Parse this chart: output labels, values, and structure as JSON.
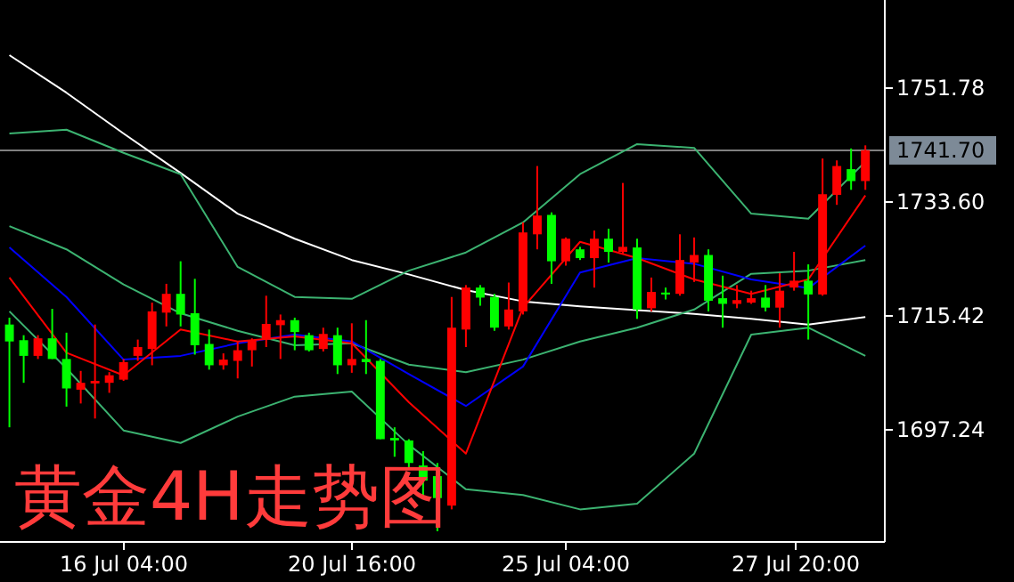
{
  "chart_data": {
    "type": "candlestick",
    "title": "黄金4H走势图",
    "categories": [
      null,
      null,
      null,
      null,
      null,
      null,
      null,
      null,
      "16 Jul 04:00",
      null,
      null,
      null,
      null,
      null,
      null,
      null,
      null,
      null,
      null,
      null,
      null,
      null,
      null,
      null,
      "20 Jul 16:00",
      null,
      null,
      null,
      null,
      null,
      null,
      null,
      null,
      null,
      null,
      null,
      null,
      null,
      null,
      "25 Jul 04:00",
      null,
      null,
      null,
      null,
      null,
      null,
      null,
      null,
      null,
      null,
      null,
      null,
      null,
      null,
      null,
      "27 Jul 20:00",
      null,
      null,
      null,
      null,
      null
    ],
    "ohlc": [
      [
        1713.9,
        1715.0,
        1697.5,
        1711.2
      ],
      [
        1711.4,
        1712.2,
        1704.6,
        1708.9
      ],
      [
        1708.9,
        1712.2,
        1708.4,
        1711.7
      ],
      [
        1711.7,
        1716.4,
        1708.4,
        1708.4
      ],
      [
        1708.4,
        1712.6,
        1700.8,
        1703.7
      ],
      [
        1703.5,
        1706.5,
        1701.3,
        1704.6
      ],
      [
        1704.5,
        1713.9,
        1698.9,
        1704.9
      ],
      [
        1704.6,
        1706.3,
        1703.0,
        1705.8
      ],
      [
        1705.1,
        1708.4,
        1704.9,
        1707.9
      ],
      [
        1708.9,
        1711.5,
        1708.1,
        1710.3
      ],
      [
        1710.0,
        1717.4,
        1707.4,
        1716.0
      ],
      [
        1715.8,
        1720.4,
        1713.6,
        1718.8
      ],
      [
        1718.8,
        1724.0,
        1713.6,
        1715.5
      ],
      [
        1715.7,
        1721.2,
        1709.1,
        1710.6
      ],
      [
        1710.8,
        1713.1,
        1706.7,
        1707.4
      ],
      [
        1707.4,
        1709.3,
        1706.7,
        1708.3
      ],
      [
        1708.1,
        1711.2,
        1705.3,
        1709.8
      ],
      [
        1709.8,
        1711.7,
        1707.2,
        1711.4
      ],
      [
        1711.5,
        1718.5,
        1710.3,
        1714.0
      ],
      [
        1713.8,
        1715.5,
        1708.4,
        1714.6
      ],
      [
        1714.6,
        1715.0,
        1709.8,
        1712.7
      ],
      [
        1712.2,
        1712.6,
        1709.6,
        1709.8
      ],
      [
        1710.0,
        1713.4,
        1709.6,
        1712.4
      ],
      [
        1712.2,
        1713.4,
        1706.0,
        1707.4
      ],
      [
        1707.4,
        1714.1,
        1706.2,
        1708.4
      ],
      [
        1708.4,
        1714.6,
        1706.0,
        1707.9
      ],
      [
        1708.1,
        1708.4,
        1695.6,
        1695.6
      ],
      [
        1695.8,
        1697.5,
        1692.8,
        1695.4
      ],
      [
        1695.4,
        1695.6,
        1690.9,
        1691.8
      ],
      [
        1691.4,
        1693.7,
        1686.2,
        1689.0
      ],
      [
        1689.7,
        1691.8,
        1680.9,
        1686.2
      ],
      [
        1685.0,
        1718.3,
        1684.4,
        1713.4
      ],
      [
        1713.1,
        1720.2,
        1710.3,
        1719.8
      ],
      [
        1719.8,
        1720.2,
        1716.9,
        1718.2
      ],
      [
        1718.3,
        1718.8,
        1712.9,
        1713.4
      ],
      [
        1713.6,
        1720.6,
        1713.1,
        1716.3
      ],
      [
        1716.0,
        1730.2,
        1715.5,
        1728.6
      ],
      [
        1728.3,
        1739.2,
        1725.9,
        1731.3
      ],
      [
        1731.4,
        1731.8,
        1720.4,
        1724.0
      ],
      [
        1724.0,
        1727.8,
        1723.3,
        1727.6
      ],
      [
        1725.9,
        1726.3,
        1724.2,
        1724.5
      ],
      [
        1724.5,
        1728.9,
        1719.8,
        1727.6
      ],
      [
        1727.6,
        1729.2,
        1723.8,
        1725.5
      ],
      [
        1725.5,
        1736.5,
        1725.2,
        1726.3
      ],
      [
        1726.2,
        1727.6,
        1714.8,
        1716.3
      ],
      [
        1716.5,
        1721.4,
        1716.0,
        1719.1
      ],
      [
        1719.0,
        1719.8,
        1717.9,
        1718.7
      ],
      [
        1718.8,
        1728.3,
        1718.5,
        1724.2
      ],
      [
        1723.8,
        1727.8,
        1720.7,
        1725.0
      ],
      [
        1725.0,
        1725.9,
        1716.0,
        1717.7
      ],
      [
        1718.1,
        1721.7,
        1713.4,
        1717.2
      ],
      [
        1717.2,
        1720.2,
        1716.5,
        1717.8
      ],
      [
        1717.4,
        1719.3,
        1717.2,
        1718.1
      ],
      [
        1718.2,
        1720.2,
        1716.0,
        1716.6
      ],
      [
        1716.6,
        1722.1,
        1713.4,
        1719.3
      ],
      [
        1719.8,
        1725.5,
        1719.3,
        1720.9
      ],
      [
        1720.9,
        1723.5,
        1711.5,
        1718.7
      ],
      [
        1718.7,
        1740.4,
        1718.5,
        1734.7
      ],
      [
        1734.6,
        1740.1,
        1733.0,
        1739.2
      ],
      [
        1738.7,
        1742.0,
        1735.4,
        1736.8
      ],
      [
        1736.8,
        1742.5,
        1735.4,
        1741.7
      ]
    ],
    "colors": [
      "#00ff00",
      "#00ff00",
      "#ff0000",
      "#00ff00",
      "#00ff00",
      "#ff0000",
      "#ff0000",
      "#ff0000",
      "#ff0000",
      "#ff0000",
      "#ff0000",
      "#ff0000",
      "#00ff00",
      "#00ff00",
      "#00ff00",
      "#ff0000",
      "#ff0000",
      "#ff0000",
      "#ff0000",
      "#ff0000",
      "#00ff00",
      "#00ff00",
      "#ff0000",
      "#00ff00",
      "#ff0000",
      "#00ff00",
      "#00ff00",
      "#00ff00",
      "#00ff00",
      "#00ff00",
      "#00ff00",
      "#ff0000",
      "#ff0000",
      "#00ff00",
      "#00ff00",
      "#ff0000",
      "#ff0000",
      "#ff0000",
      "#00ff00",
      "#ff0000",
      "#00ff00",
      "#ff0000",
      "#00ff00",
      "#ff0000",
      "#00ff00",
      "#ff0000",
      "#00ff00",
      "#ff0000",
      "#ff0000",
      "#00ff00",
      "#00ff00",
      "#ff0000",
      "#ff0000",
      "#00ff00",
      "#ff0000",
      "#ff0000",
      "#00ff00",
      "#ff0000",
      "#ff0000",
      "#00ff00",
      "#ff0000"
    ],
    "series": [
      {
        "type": "line",
        "color": "#ffffff",
        "values": [
          1756.9,
          null,
          null,
          null,
          1750.9,
          null,
          null,
          null,
          1744.4,
          null,
          null,
          null,
          1738.1,
          null,
          null,
          null,
          1731.6,
          null,
          null,
          null,
          1727.6,
          null,
          null,
          null,
          1724.2,
          null,
          null,
          null,
          1721.9,
          null,
          null,
          null,
          1719.4,
          null,
          null,
          null,
          1717.6,
          null,
          null,
          null,
          1716.8,
          null,
          null,
          null,
          1716.2,
          null,
          null,
          null,
          1715.6,
          null,
          null,
          null,
          1714.8,
          null,
          null,
          null,
          1713.9,
          null,
          null,
          null,
          1715.1
        ]
      },
      {
        "type": "line",
        "color": "#3cb371",
        "values": [
          1744.4,
          null,
          null,
          null,
          1745.0,
          null,
          null,
          null,
          1741.3,
          null,
          null,
          null,
          1737.9,
          null,
          null,
          null,
          1723.1,
          null,
          null,
          null,
          1718.3,
          null,
          null,
          null,
          1718.0,
          null,
          null,
          null,
          1722.5,
          null,
          null,
          null,
          1725.4,
          null,
          null,
          null,
          1730.2,
          null,
          null,
          null,
          1737.9,
          null,
          null,
          null,
          1742.7,
          null,
          null,
          null,
          1742.1,
          null,
          null,
          null,
          1731.6,
          null,
          null,
          null,
          1730.8,
          null,
          null,
          null,
          1739.9
        ]
      },
      {
        "type": "line",
        "color": "#3cb371",
        "values": [
          1729.6,
          null,
          null,
          null,
          1725.9,
          null,
          null,
          null,
          1720.3,
          null,
          null,
          null,
          1715.7,
          null,
          null,
          null,
          1712.9,
          null,
          null,
          null,
          1710.6,
          null,
          null,
          null,
          1710.9,
          null,
          null,
          null,
          1707.5,
          null,
          null,
          null,
          1706.3,
          null,
          null,
          null,
          1708.3,
          null,
          null,
          null,
          1711.2,
          null,
          null,
          null,
          1713.4,
          null,
          null,
          null,
          1716.3,
          null,
          null,
          null,
          1722.0,
          null,
          null,
          null,
          1722.5,
          null,
          null,
          null,
          1724.2
        ]
      },
      {
        "type": "line",
        "color": "#3cb371",
        "values": [
          1716.0,
          null,
          null,
          null,
          1706.9,
          null,
          null,
          null,
          1697.0,
          null,
          null,
          null,
          1695.0,
          null,
          null,
          null,
          1699.2,
          null,
          null,
          null,
          1702.4,
          null,
          null,
          null,
          1703.2,
          null,
          null,
          null,
          1694.7,
          null,
          null,
          null,
          1687.6,
          null,
          null,
          null,
          1686.7,
          null,
          null,
          null,
          1684.4,
          null,
          null,
          null,
          1685.3,
          null,
          null,
          null,
          1693.3,
          null,
          null,
          null,
          1712.3,
          null,
          null,
          null,
          1713.4,
          null,
          null,
          null,
          1708.9
        ]
      },
      {
        "type": "line",
        "color": "#0000ff",
        "values": [
          1726.2,
          null,
          null,
          null,
          1718.3,
          null,
          null,
          null,
          1708.3,
          null,
          null,
          null,
          1708.9,
          null,
          null,
          null,
          1710.9,
          null,
          null,
          null,
          1712.3,
          null,
          null,
          null,
          1711.2,
          null,
          null,
          null,
          1706.0,
          null,
          null,
          null,
          1700.9,
          null,
          null,
          null,
          1707.2,
          null,
          null,
          null,
          1722.2,
          null,
          null,
          null,
          1724.5,
          null,
          null,
          null,
          1723.6,
          null,
          null,
          null,
          1721.1,
          null,
          null,
          null,
          1719.7,
          null,
          null,
          null,
          1726.5
        ]
      },
      {
        "type": "line",
        "color": "#ff0000",
        "values": [
          1721.4,
          null,
          null,
          null,
          1709.4,
          null,
          null,
          null,
          1705.8,
          null,
          null,
          null,
          1713.1,
          null,
          null,
          null,
          1711.2,
          null,
          null,
          null,
          1712.0,
          null,
          null,
          null,
          1710.9,
          null,
          null,
          null,
          1701.5,
          null,
          null,
          null,
          1693.3,
          null,
          null,
          null,
          1716.6,
          null,
          null,
          null,
          1727.1,
          null,
          null,
          null,
          1724.5,
          null,
          null,
          null,
          1721.1,
          null,
          null,
          null,
          1718.8,
          null,
          null,
          null,
          1721.1,
          null,
          null,
          null,
          1734.5
        ]
      }
    ],
    "ylim": [
      1679.34,
      1765.7
    ],
    "yticks": [
      {
        "value": 1697.24,
        "label": "1697.24"
      },
      {
        "value": 1715.42,
        "label": "1715.42"
      },
      {
        "value": 1733.6,
        "label": "1733.60"
      },
      {
        "value": 1751.78,
        "label": "1751.78"
      }
    ],
    "ref_lines": [
      {
        "axis": "y",
        "value": 1741.7,
        "label": "1741.70",
        "color": "#808080"
      }
    ]
  }
}
